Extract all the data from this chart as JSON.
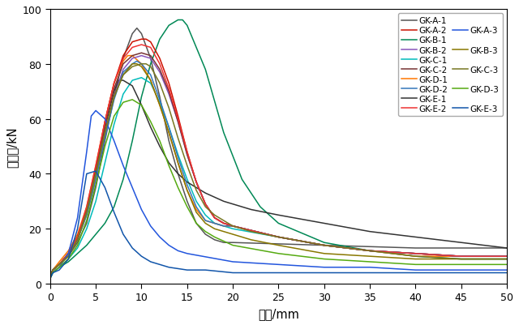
{
  "xlabel": "位移/mm",
  "ylabel": "锚固力/kN",
  "xlim": [
    0,
    50
  ],
  "ylim": [
    0,
    100
  ],
  "xticks": [
    0,
    5,
    10,
    15,
    20,
    25,
    30,
    35,
    40,
    45,
    50
  ],
  "yticks": [
    0,
    20,
    40,
    60,
    80,
    100
  ],
  "series": [
    {
      "label": "GK-A-1",
      "color": "#555555",
      "x": [
        0,
        0.3,
        1,
        2,
        3,
        4,
        5,
        6,
        7,
        8,
        9,
        9.5,
        10,
        11,
        12,
        13,
        14,
        15,
        16,
        17,
        18,
        19,
        20,
        25,
        30,
        35,
        40,
        45,
        50
      ],
      "y": [
        3,
        5,
        7,
        10,
        15,
        22,
        35,
        52,
        68,
        82,
        91,
        93,
        91,
        82,
        68,
        52,
        40,
        30,
        22,
        18,
        16,
        15,
        15,
        14.5,
        14,
        13.5,
        13,
        13,
        13
      ]
    },
    {
      "label": "GK-B-1",
      "color": "#008855",
      "x": [
        0,
        0.3,
        1,
        2,
        3,
        4,
        5,
        6,
        7,
        8,
        9,
        10,
        11,
        12,
        13,
        14,
        14.5,
        15,
        17,
        19,
        21,
        23,
        25,
        30,
        35,
        40,
        45,
        50
      ],
      "y": [
        2,
        4,
        6,
        8,
        11,
        14,
        18,
        22,
        28,
        38,
        52,
        68,
        80,
        89,
        94,
        96,
        96,
        94,
        78,
        55,
        38,
        28,
        22,
        15,
        12,
        10,
        9,
        9
      ]
    },
    {
      "label": "GK-C-1",
      "color": "#00bbbb",
      "x": [
        0,
        0.3,
        1,
        2,
        3,
        4,
        5,
        6,
        7,
        8,
        9,
        10,
        11,
        12,
        13,
        14,
        15,
        16,
        17,
        18,
        19,
        20,
        25,
        30,
        35,
        40,
        45,
        50
      ],
      "y": [
        2,
        4,
        6,
        9,
        13,
        20,
        30,
        44,
        58,
        69,
        74,
        75,
        73,
        66,
        57,
        47,
        38,
        30,
        25,
        22,
        21,
        20,
        17,
        14,
        12,
        11,
        10,
        10
      ]
    },
    {
      "label": "GK-D-1",
      "color": "#ff7700",
      "x": [
        0,
        0.3,
        1,
        2,
        3,
        4,
        5,
        6,
        7,
        8,
        8.5,
        9,
        10,
        11,
        12,
        13,
        14,
        15,
        16,
        17,
        18,
        19,
        20,
        25,
        30,
        35,
        40,
        45,
        50
      ],
      "y": [
        2,
        5,
        8,
        12,
        18,
        28,
        43,
        59,
        73,
        81,
        83,
        83,
        80,
        74,
        65,
        55,
        44,
        34,
        27,
        23,
        22,
        21,
        21,
        17,
        14,
        12,
        10,
        10,
        10
      ]
    },
    {
      "label": "GK-E-1",
      "color": "#333333",
      "x": [
        0,
        0.3,
        1,
        2,
        3,
        4,
        5,
        6,
        7,
        7.5,
        8,
        9,
        10,
        11,
        12,
        13,
        14,
        15,
        17,
        19,
        20,
        22,
        25,
        30,
        35,
        40,
        45,
        50
      ],
      "y": [
        2,
        5,
        7,
        11,
        17,
        27,
        42,
        57,
        70,
        74,
        74,
        72,
        65,
        57,
        50,
        44,
        40,
        37,
        33,
        30,
        29,
        27,
        25,
        22,
        19,
        17,
        15,
        13
      ]
    },
    {
      "label": "GK-A-2",
      "color": "#cc1100",
      "x": [
        0,
        0.3,
        1,
        2,
        3,
        4,
        5,
        6,
        7,
        8,
        9,
        10,
        10.5,
        11,
        12,
        13,
        14,
        15,
        16,
        17,
        18,
        19,
        20,
        25,
        30,
        35,
        40,
        45,
        50
      ],
      "y": [
        2,
        5,
        7,
        11,
        17,
        27,
        42,
        59,
        73,
        83,
        88,
        89,
        89,
        88,
        82,
        73,
        61,
        48,
        37,
        29,
        24,
        22,
        21,
        17,
        14,
        12,
        11,
        10,
        10
      ]
    },
    {
      "label": "GK-B-2",
      "color": "#8855bb",
      "x": [
        0,
        0.3,
        1,
        2,
        3,
        4,
        5,
        6,
        7,
        8,
        9,
        10,
        11,
        12,
        13,
        14,
        15,
        16,
        17,
        18,
        19,
        20,
        25,
        30,
        35,
        40,
        45,
        50
      ],
      "y": [
        2,
        5,
        7,
        11,
        16,
        25,
        38,
        54,
        68,
        78,
        82,
        83,
        82,
        77,
        69,
        59,
        47,
        37,
        29,
        24,
        22,
        21,
        17,
        14,
        12,
        11,
        10,
        10
      ]
    },
    {
      "label": "GK-C-2",
      "color": "#773333",
      "x": [
        0,
        0.3,
        1,
        2,
        3,
        4,
        5,
        6,
        7,
        8,
        9,
        10,
        11,
        12,
        13,
        14,
        15,
        16,
        17,
        18,
        19,
        20,
        25,
        30,
        35,
        40,
        45,
        50
      ],
      "y": [
        2,
        5,
        7,
        11,
        17,
        27,
        41,
        57,
        71,
        80,
        83,
        84,
        83,
        78,
        70,
        59,
        47,
        37,
        29,
        24,
        22,
        21,
        17,
        14,
        12,
        11,
        10,
        10
      ]
    },
    {
      "label": "GK-D-2",
      "color": "#3377bb",
      "x": [
        0,
        0.3,
        1,
        2,
        3,
        4,
        5,
        6,
        7,
        8,
        9,
        9.5,
        10,
        11,
        12,
        13,
        14,
        15,
        16,
        17,
        18,
        19,
        20,
        25,
        30,
        35,
        40,
        45,
        50
      ],
      "y": [
        2,
        5,
        7,
        11,
        16,
        25,
        38,
        53,
        67,
        77,
        80,
        81,
        80,
        76,
        67,
        57,
        46,
        36,
        28,
        23,
        22,
        21,
        21,
        17,
        14,
        12,
        11,
        10,
        10
      ]
    },
    {
      "label": "GK-E-2",
      "color": "#ee3333",
      "x": [
        0,
        0.3,
        1,
        2,
        3,
        4,
        5,
        6,
        7,
        8,
        9,
        10,
        11,
        12,
        13,
        14,
        15,
        16,
        17,
        18,
        19,
        20,
        25,
        30,
        35,
        40,
        45,
        50
      ],
      "y": [
        2,
        5,
        7,
        11,
        17,
        28,
        43,
        59,
        73,
        82,
        86,
        87,
        86,
        80,
        71,
        60,
        48,
        37,
        29,
        24,
        22,
        21,
        17,
        14,
        12,
        11,
        10,
        10
      ]
    },
    {
      "label": "GK-A-3",
      "color": "#2255dd",
      "x": [
        0,
        0.3,
        1,
        2,
        3,
        4,
        4.5,
        5,
        6,
        7,
        8,
        9,
        10,
        11,
        12,
        13,
        14,
        15,
        20,
        25,
        30,
        35,
        40,
        45,
        50
      ],
      "y": [
        2,
        4,
        6,
        11,
        24,
        48,
        61,
        63,
        60,
        52,
        43,
        35,
        27,
        21,
        17,
        14,
        12,
        11,
        8,
        7,
        6,
        6,
        5,
        5,
        5
      ]
    },
    {
      "label": "GK-B-3",
      "color": "#887700",
      "x": [
        0,
        0.3,
        1,
        2,
        3,
        4,
        5,
        6,
        7,
        8,
        9,
        9.5,
        10,
        11,
        12,
        13,
        14,
        15,
        16,
        17,
        18,
        19,
        20,
        22,
        25,
        30,
        35,
        40,
        45,
        50
      ],
      "y": [
        2,
        5,
        7,
        10,
        16,
        26,
        40,
        55,
        68,
        76,
        80,
        80,
        79,
        74,
        65,
        55,
        44,
        34,
        26,
        22,
        20,
        19,
        18,
        16,
        14,
        11,
        10,
        9,
        9,
        9
      ]
    },
    {
      "label": "GK-C-3",
      "color": "#777722",
      "x": [
        0,
        0.3,
        1,
        2,
        3,
        4,
        5,
        6,
        7,
        8,
        9,
        10,
        10.5,
        11,
        12,
        13,
        14,
        15,
        16,
        17,
        18,
        20,
        22,
        25,
        30,
        35,
        40,
        45,
        50
      ],
      "y": [
        2,
        5,
        7,
        10,
        16,
        26,
        40,
        55,
        68,
        76,
        79,
        80,
        80,
        79,
        73,
        64,
        53,
        43,
        34,
        28,
        25,
        21,
        19,
        17,
        14,
        12,
        10,
        9,
        9
      ]
    },
    {
      "label": "GK-D-3",
      "color": "#55aa11",
      "x": [
        0,
        0.3,
        1,
        2,
        3,
        4,
        5,
        6,
        7,
        8,
        9,
        10,
        11,
        12,
        13,
        14,
        15,
        16,
        17,
        18,
        20,
        25,
        30,
        35,
        40,
        45,
        50
      ],
      "y": [
        2,
        4,
        6,
        9,
        14,
        23,
        36,
        50,
        61,
        66,
        67,
        65,
        59,
        52,
        43,
        35,
        28,
        22,
        19,
        17,
        14,
        11,
        9,
        8,
        7,
        7,
        7
      ]
    },
    {
      "label": "GK-E-3",
      "color": "#1155aa",
      "x": [
        0,
        0.3,
        1,
        2,
        3,
        3.5,
        4,
        5,
        6,
        7,
        8,
        9,
        10,
        11,
        12,
        13,
        15,
        17,
        20,
        25,
        30,
        35,
        40,
        45,
        50
      ],
      "y": [
        2,
        4,
        5,
        9,
        20,
        30,
        40,
        41,
        35,
        26,
        18,
        13,
        10,
        8,
        7,
        6,
        5,
        5,
        4,
        4,
        4,
        4,
        4,
        4,
        4
      ]
    }
  ],
  "legend_col1": [
    "GK-A-1",
    "GK-B-1",
    "GK-C-1",
    "GK-D-1",
    "GK-E-1"
  ],
  "legend_col2": [
    "GK-A-2",
    "GK-B-2",
    "GK-C-2",
    "GK-D-2",
    "GK-E-2"
  ],
  "legend_col3": [
    "GK-A-3",
    "GK-B-3",
    "GK-C-3",
    "GK-D-3",
    "GK-E-3"
  ]
}
